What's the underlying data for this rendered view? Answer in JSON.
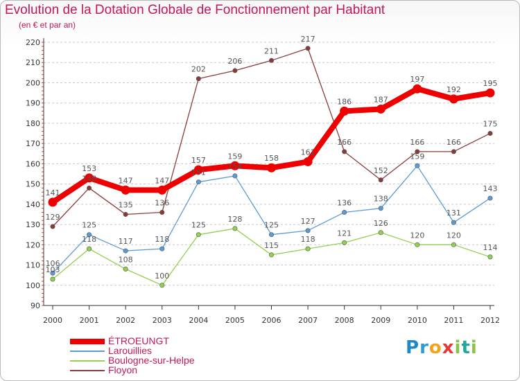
{
  "header": {
    "title": "Evolution de la Dotation Globale de Fonctionnement par Habitant",
    "subtitle": "(en € et par an)"
  },
  "brand": {
    "text": "Proxiti",
    "letters": [
      {
        "ch": "P",
        "color": "#1e88c8"
      },
      {
        "ch": "r",
        "color": "#2e9ad6"
      },
      {
        "ch": "o",
        "color": "#f2a21b"
      },
      {
        "ch": "x",
        "color": "#e53935"
      },
      {
        "ch": "i",
        "color": "#8bc34a"
      },
      {
        "ch": "t",
        "color": "#26a69a"
      },
      {
        "ch": "i",
        "color": "#8bc34a"
      }
    ]
  },
  "chart_data": {
    "type": "line",
    "title": "Evolution de la Dotation Globale de Fonctionnement par Habitant",
    "subtitle": "(en € et par an)",
    "xlabel": "",
    "ylabel": "",
    "ylim": [
      90,
      220
    ],
    "yticks": [
      90,
      100,
      110,
      120,
      130,
      140,
      150,
      160,
      170,
      180,
      190,
      200,
      210,
      220
    ],
    "categories": [
      "2000",
      "2001",
      "2002",
      "2003",
      "2004",
      "2005",
      "2006",
      "2007",
      "2008",
      "2009",
      "2010",
      "2011",
      "2012"
    ],
    "grid": "horizontal dashed",
    "legend_position": "bottom-left",
    "series": [
      {
        "name": "ÉTROEUNGT",
        "color": "#ee0000",
        "emphasis": true,
        "values": [
          141,
          153,
          147,
          147,
          157,
          159,
          158,
          161,
          186,
          187,
          197,
          192,
          195
        ]
      },
      {
        "name": "Larouillies",
        "color": "#5b9bd5",
        "emphasis": false,
        "values": [
          106,
          125,
          117,
          118,
          151,
          154,
          125,
          127,
          136,
          138,
          159,
          131,
          143
        ]
      },
      {
        "name": "Boulogne-sur-Helpe",
        "color": "#92d050",
        "emphasis": false,
        "values": [
          103,
          118,
          108,
          100,
          125,
          128,
          115,
          118,
          121,
          126,
          120,
          120,
          114
        ]
      },
      {
        "name": "Floyon",
        "color": "#8b3a3a",
        "emphasis": false,
        "values": [
          129,
          148,
          135,
          136,
          202,
          206,
          211,
          217,
          166,
          152,
          166,
          166,
          175
        ]
      }
    ]
  }
}
